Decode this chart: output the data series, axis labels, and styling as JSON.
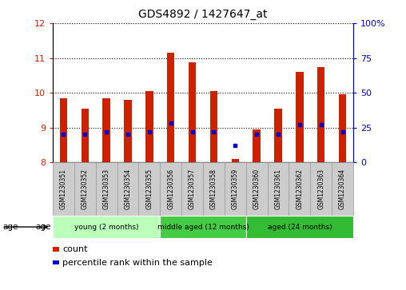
{
  "title": "GDS4892 / 1427647_at",
  "samples": [
    "GSM1230351",
    "GSM1230352",
    "GSM1230353",
    "GSM1230354",
    "GSM1230355",
    "GSM1230356",
    "GSM1230357",
    "GSM1230358",
    "GSM1230359",
    "GSM1230360",
    "GSM1230361",
    "GSM1230362",
    "GSM1230363",
    "GSM1230364"
  ],
  "count_values": [
    9.85,
    9.55,
    9.85,
    9.8,
    10.05,
    11.15,
    10.87,
    10.05,
    8.1,
    8.95,
    9.55,
    10.6,
    10.73,
    9.95
  ],
  "percentile_values": [
    20,
    20,
    22,
    20,
    22,
    28,
    22,
    22,
    12,
    20,
    20,
    27,
    27,
    22
  ],
  "bar_bottom": 8.0,
  "ylim_left": [
    8,
    12
  ],
  "ylim_right": [
    0,
    100
  ],
  "yticks_left": [
    8,
    9,
    10,
    11,
    12
  ],
  "yticks_right": [
    0,
    25,
    50,
    75,
    100
  ],
  "left_color": "#cc2200",
  "right_color": "#0000cc",
  "bar_width": 0.35,
  "groups": [
    {
      "label": "young (2 months)",
      "start": 0,
      "end": 5,
      "color": "#bbffbb",
      "text_color": "#000000"
    },
    {
      "label": "middle aged (12 months)",
      "start": 5,
      "end": 9,
      "color": "#44cc44",
      "text_color": "#000000"
    },
    {
      "label": "aged (24 months)",
      "start": 9,
      "end": 14,
      "color": "#33bb33",
      "text_color": "#000000"
    }
  ],
  "legend_count_label": "count",
  "legend_percentile_label": "percentile rank within the sample",
  "bg_color": "#ffffff",
  "grid_color": "#000000",
  "sample_cell_color": "#cccccc",
  "sample_cell_edge": "#999999"
}
